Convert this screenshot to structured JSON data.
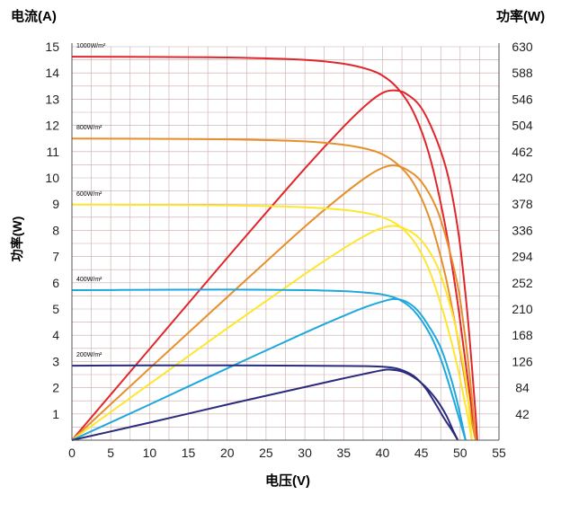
{
  "chart_data": {
    "type": "line",
    "title": "",
    "left_axis_title": "电流(A)",
    "right_axis_title": "功率(W)",
    "side_ylabel": "功率(W)",
    "xlabel": "电压(V)",
    "xlim": [
      0,
      55
    ],
    "ylim": [
      0,
      15
    ],
    "y2lim": [
      0,
      630
    ],
    "x_ticks": [
      "0",
      "5",
      "10",
      "15",
      "20",
      "25",
      "30",
      "35",
      "40",
      "45",
      "50",
      "55"
    ],
    "y_ticks": [
      "1",
      "2",
      "3",
      "4",
      "5",
      "6",
      "7",
      "8",
      "9",
      "10",
      "11",
      "12",
      "13",
      "14",
      "15"
    ],
    "y2_ticks": [
      "42",
      "84",
      "126",
      "168",
      "210",
      "252",
      "294",
      "336",
      "378",
      "420",
      "462",
      "504",
      "546",
      "588",
      "630"
    ],
    "grid": true,
    "series": [
      {
        "name": "1000W/m²",
        "color": "#e0262b",
        "iv": [
          [
            0,
            14.62
          ],
          [
            10,
            14.61
          ],
          [
            20,
            14.59
          ],
          [
            30,
            14.5
          ],
          [
            35,
            14.35
          ],
          [
            38,
            14.15
          ],
          [
            40,
            13.9
          ],
          [
            42,
            13.4
          ],
          [
            44,
            12.5
          ],
          [
            46,
            10.9
          ],
          [
            48,
            8.3
          ],
          [
            49.5,
            5.6
          ],
          [
            50.5,
            3.4
          ],
          [
            51.3,
            1.6
          ],
          [
            51.8,
            0.5
          ],
          [
            52.2,
            0
          ]
        ],
        "pv": [
          [
            0,
            0
          ],
          [
            10,
            146
          ],
          [
            20,
            292
          ],
          [
            30,
            435
          ],
          [
            35,
            502
          ],
          [
            38,
            538
          ],
          [
            40,
            556
          ],
          [
            41.5,
            560
          ],
          [
            43,
            555
          ],
          [
            45,
            532
          ],
          [
            47,
            480
          ],
          [
            48.5,
            420
          ],
          [
            49.8,
            330
          ],
          [
            50.8,
            220
          ],
          [
            51.5,
            120
          ],
          [
            52,
            40
          ],
          [
            52.2,
            0
          ]
        ]
      },
      {
        "name": "800W/m²",
        "color": "#e78f2a",
        "iv": [
          [
            0,
            11.5
          ],
          [
            10,
            11.49
          ],
          [
            20,
            11.47
          ],
          [
            30,
            11.39
          ],
          [
            35,
            11.26
          ],
          [
            38,
            11.1
          ],
          [
            40,
            10.9
          ],
          [
            42,
            10.5
          ],
          [
            44,
            9.8
          ],
          [
            46,
            8.5
          ],
          [
            48,
            6.4
          ],
          [
            49.5,
            4.2
          ],
          [
            50.5,
            2.5
          ],
          [
            51.2,
            1.2
          ],
          [
            51.7,
            0.4
          ],
          [
            52,
            0
          ]
        ],
        "pv": [
          [
            0,
            0
          ],
          [
            10,
            115
          ],
          [
            20,
            229
          ],
          [
            30,
            342
          ],
          [
            35,
            394
          ],
          [
            38,
            422
          ],
          [
            40,
            436
          ],
          [
            41.5,
            440
          ],
          [
            43,
            434
          ],
          [
            45,
            414
          ],
          [
            47,
            370
          ],
          [
            48.5,
            310
          ],
          [
            49.8,
            240
          ],
          [
            50.8,
            150
          ],
          [
            51.5,
            70
          ],
          [
            52,
            0
          ]
        ]
      },
      {
        "name": "600W/m²",
        "color": "#ffe62e",
        "iv": [
          [
            0,
            8.98
          ],
          [
            10,
            8.97
          ],
          [
            20,
            8.95
          ],
          [
            30,
            8.88
          ],
          [
            35,
            8.78
          ],
          [
            38,
            8.65
          ],
          [
            40,
            8.5
          ],
          [
            42,
            8.2
          ],
          [
            44,
            7.6
          ],
          [
            46,
            6.5
          ],
          [
            48,
            4.7
          ],
          [
            49.5,
            3.0
          ],
          [
            50.5,
            1.6
          ],
          [
            51.1,
            0.7
          ],
          [
            51.5,
            0
          ]
        ],
        "pv": [
          [
            0,
            0
          ],
          [
            10,
            90
          ],
          [
            20,
            179
          ],
          [
            30,
            266
          ],
          [
            35,
            307
          ],
          [
            38,
            329
          ],
          [
            40,
            340
          ],
          [
            41.5,
            343
          ],
          [
            43,
            338
          ],
          [
            45,
            320
          ],
          [
            47,
            280
          ],
          [
            48.5,
            225
          ],
          [
            49.8,
            160
          ],
          [
            50.8,
            90
          ],
          [
            51.5,
            0
          ]
        ]
      },
      {
        "name": "400W/m²",
        "color": "#1ea8dd",
        "iv": [
          [
            0,
            5.72
          ],
          [
            10,
            5.73
          ],
          [
            20,
            5.74
          ],
          [
            30,
            5.72
          ],
          [
            35,
            5.68
          ],
          [
            38,
            5.62
          ],
          [
            40,
            5.55
          ],
          [
            42,
            5.38
          ],
          [
            44,
            4.95
          ],
          [
            46,
            4.1
          ],
          [
            47.5,
            3.1
          ],
          [
            48.8,
            1.9
          ],
          [
            49.8,
            0.9
          ],
          [
            50.4,
            0.3
          ],
          [
            50.7,
            0
          ]
        ],
        "pv": [
          [
            0,
            0
          ],
          [
            10,
            57
          ],
          [
            20,
            115
          ],
          [
            30,
            172
          ],
          [
            35,
            199
          ],
          [
            38,
            214
          ],
          [
            40,
            222
          ],
          [
            41.5,
            226
          ],
          [
            43,
            222
          ],
          [
            44.5,
            208
          ],
          [
            46,
            182
          ],
          [
            47.5,
            148
          ],
          [
            48.8,
            100
          ],
          [
            49.8,
            52
          ],
          [
            50.7,
            0
          ]
        ]
      },
      {
        "name": "200W/m²",
        "color": "#2b2b7e",
        "iv": [
          [
            0,
            2.84
          ],
          [
            10,
            2.85
          ],
          [
            20,
            2.85
          ],
          [
            30,
            2.84
          ],
          [
            35,
            2.83
          ],
          [
            38,
            2.82
          ],
          [
            40,
            2.8
          ],
          [
            42,
            2.72
          ],
          [
            44,
            2.45
          ],
          [
            45.5,
            2.0
          ],
          [
            46.8,
            1.4
          ],
          [
            48,
            0.8
          ],
          [
            49,
            0.35
          ],
          [
            49.7,
            0
          ]
        ],
        "pv": [
          [
            0,
            0
          ],
          [
            10,
            28
          ],
          [
            20,
            57
          ],
          [
            30,
            85
          ],
          [
            35,
            99
          ],
          [
            38,
            107
          ],
          [
            40,
            112
          ],
          [
            41,
            113
          ],
          [
            42.5,
            110
          ],
          [
            44,
            101
          ],
          [
            45.5,
            86
          ],
          [
            47,
            64
          ],
          [
            48.2,
            40
          ],
          [
            49,
            18
          ],
          [
            49.7,
            0
          ]
        ]
      }
    ]
  }
}
